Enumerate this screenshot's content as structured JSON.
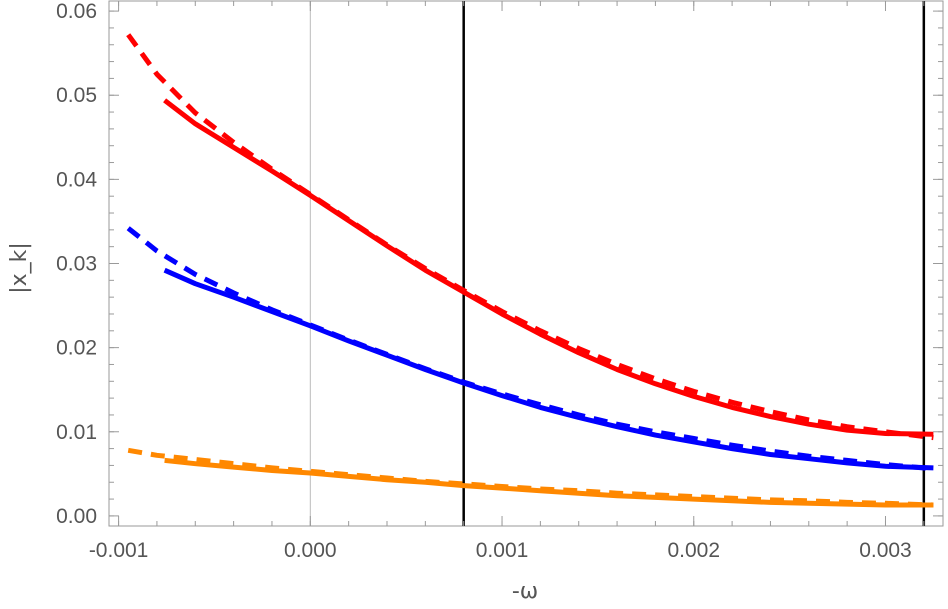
{
  "chart_data": {
    "type": "line",
    "title": "",
    "xlabel": "-ω",
    "ylabel": "|x_k|",
    "xlim": [
      -0.00105,
      0.0033
    ],
    "ylim": [
      -0.0012,
      0.0612
    ],
    "grid": false,
    "x_ticks": [
      -0.001,
      0.0,
      0.001,
      0.002,
      0.003
    ],
    "x_tick_labels": [
      "-0.001",
      "0.000",
      "0.001",
      "0.002",
      "0.003"
    ],
    "y_ticks": [
      0.0,
      0.01,
      0.02,
      0.03,
      0.04,
      0.05,
      0.06
    ],
    "y_tick_labels": [
      "0.00",
      "0.01",
      "0.02",
      "0.03",
      "0.04",
      "0.05",
      "0.06"
    ],
    "vertical_lines": [
      {
        "x": 0.0,
        "color": "#bbbbbb",
        "role": "zero reference"
      },
      {
        "x": 0.0008,
        "color": "#000000"
      },
      {
        "x": 0.0032,
        "color": "#000000"
      }
    ],
    "series": [
      {
        "name": "red-dashed",
        "color": "#ff0000",
        "style": "dashed",
        "x": [
          -0.00095,
          -0.0008,
          -0.0006,
          -0.0004,
          -0.0002,
          0.0,
          0.0002,
          0.0004,
          0.0006,
          0.0008,
          0.001,
          0.0012,
          0.0014,
          0.0016,
          0.0018,
          0.002,
          0.0022,
          0.0024,
          0.0026,
          0.0028,
          0.003,
          0.00325
        ],
        "y": [
          0.0572,
          0.0525,
          0.0479,
          0.0444,
          0.0412,
          0.0382,
          0.0352,
          0.0322,
          0.0294,
          0.0268,
          0.0243,
          0.022,
          0.0199,
          0.018,
          0.0163,
          0.0148,
          0.0135,
          0.0124,
          0.0114,
          0.0106,
          0.01,
          0.0093
        ]
      },
      {
        "name": "red-solid",
        "color": "#ff0000",
        "style": "solid",
        "x": [
          -0.00076,
          -0.0006,
          -0.0004,
          -0.0002,
          0.0,
          0.0002,
          0.0004,
          0.0006,
          0.0008,
          0.001,
          0.0012,
          0.0014,
          0.0016,
          0.0018,
          0.002,
          0.0022,
          0.0024,
          0.0026,
          0.0028,
          0.003,
          0.00325
        ],
        "y": [
          0.0494,
          0.0466,
          0.0438,
          0.041,
          0.0381,
          0.0351,
          0.0321,
          0.0292,
          0.0266,
          0.024,
          0.0216,
          0.0194,
          0.0174,
          0.0157,
          0.0142,
          0.0129,
          0.0118,
          0.0109,
          0.0102,
          0.0098,
          0.0097
        ]
      },
      {
        "name": "blue-dashed",
        "color": "#0000ff",
        "style": "dashed",
        "x": [
          -0.00095,
          -0.0008,
          -0.0006,
          -0.0004,
          -0.0002,
          0.0,
          0.0002,
          0.0004,
          0.0006,
          0.0008,
          0.001,
          0.0012,
          0.0014,
          0.0016,
          0.0018,
          0.002,
          0.0022,
          0.0024,
          0.0026,
          0.0028,
          0.003,
          0.00325
        ],
        "y": [
          0.0342,
          0.0315,
          0.0287,
          0.0265,
          0.0245,
          0.0227,
          0.0209,
          0.0192,
          0.0175,
          0.0159,
          0.0145,
          0.0132,
          0.012,
          0.0109,
          0.01,
          0.0092,
          0.0084,
          0.0077,
          0.0071,
          0.0066,
          0.0061,
          0.0056
        ]
      },
      {
        "name": "blue-solid",
        "color": "#0000ff",
        "style": "solid",
        "x": [
          -0.00076,
          -0.0006,
          -0.0004,
          -0.0002,
          0.0,
          0.0002,
          0.0004,
          0.0006,
          0.0008,
          0.001,
          0.0012,
          0.0014,
          0.0016,
          0.0018,
          0.002,
          0.0022,
          0.0024,
          0.0026,
          0.0028,
          0.003,
          0.00325
        ],
        "y": [
          0.0292,
          0.0276,
          0.026,
          0.0243,
          0.0226,
          0.0208,
          0.0191,
          0.0174,
          0.0158,
          0.0143,
          0.0129,
          0.0117,
          0.0106,
          0.0096,
          0.0088,
          0.008,
          0.0073,
          0.0068,
          0.0063,
          0.0059,
          0.0057
        ]
      },
      {
        "name": "orange-dashed",
        "color": "#ff8800",
        "style": "dashed",
        "x": [
          -0.00095,
          -0.0008,
          -0.0006,
          -0.0004,
          -0.0002,
          0.0,
          0.0002,
          0.0004,
          0.0006,
          0.0008,
          0.001,
          0.0012,
          0.0014,
          0.0016,
          0.0018,
          0.002,
          0.0022,
          0.0024,
          0.0026,
          0.0028,
          0.003,
          0.00325
        ],
        "y": [
          0.0078,
          0.0072,
          0.0067,
          0.0062,
          0.0057,
          0.0053,
          0.0049,
          0.0045,
          0.0041,
          0.0038,
          0.0035,
          0.0032,
          0.003,
          0.0027,
          0.0025,
          0.0023,
          0.0021,
          0.0019,
          0.0018,
          0.0016,
          0.0015,
          0.0013
        ]
      },
      {
        "name": "orange-solid",
        "color": "#ff8800",
        "style": "solid",
        "x": [
          -0.00076,
          -0.0006,
          -0.0004,
          -0.0002,
          0.0,
          0.0002,
          0.0004,
          0.0006,
          0.0008,
          0.001,
          0.0012,
          0.0014,
          0.0016,
          0.0018,
          0.002,
          0.0022,
          0.0024,
          0.0026,
          0.0028,
          0.003,
          0.00325
        ],
        "y": [
          0.0066,
          0.0062,
          0.0058,
          0.0054,
          0.0051,
          0.0047,
          0.0043,
          0.004,
          0.0036,
          0.0033,
          0.003,
          0.0027,
          0.0024,
          0.0022,
          0.002,
          0.0018,
          0.0016,
          0.0015,
          0.0014,
          0.0013,
          0.0013
        ]
      }
    ]
  }
}
